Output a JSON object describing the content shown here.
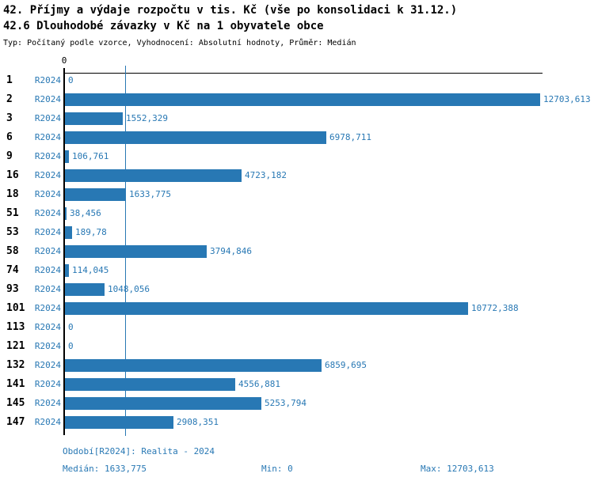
{
  "header": {
    "title1": "42. Příjmy a výdaje rozpočtu v tis. Kč (vše po konsolidaci k 31.12.)",
    "title2": "42.6 Dlouhodobé závazky v Kč na 1 obyvatele obce",
    "subtitle": "Typ: Počítaný podle vzorce, Vyhodnocení: Absolutní hodnoty, Průměr: Medián"
  },
  "colors": {
    "bar": "#2878b4",
    "median_line": "#2878b4",
    "axis": "#000000",
    "value_text": "#2878b4"
  },
  "chart_data": {
    "type": "bar",
    "orientation": "horizontal",
    "series_label": "R2024",
    "axis_zero_label": "0",
    "xlim": [
      0,
      12703.613
    ],
    "median_value": 1633.775,
    "grid": false,
    "categories": [
      "1",
      "2",
      "3",
      "6",
      "9",
      "16",
      "18",
      "51",
      "53",
      "58",
      "74",
      "93",
      "101",
      "113",
      "121",
      "132",
      "141",
      "145",
      "147"
    ],
    "values": [
      0,
      12703.613,
      1552.329,
      6978.711,
      106.761,
      4723.182,
      1633.775,
      38.456,
      189.78,
      3794.846,
      114.045,
      1048.056,
      10772.388,
      0,
      0,
      6859.695,
      4556.881,
      5253.794,
      2908.351
    ],
    "value_labels": [
      "0",
      "12703,613",
      "1552,329",
      "6978,711",
      "106,761",
      "4723,182",
      "1633,775",
      "38,456",
      "189,78",
      "3794,846",
      "114,045",
      "1048,056",
      "10772,388",
      "0",
      "0",
      "6859,695",
      "4556,881",
      "5253,794",
      "2908,351"
    ]
  },
  "footer": {
    "period": "Období[R2024]: Realita - 2024",
    "median": "Medián: 1633,775",
    "min": "Min: 0",
    "max": "Max: 12703,613"
  }
}
